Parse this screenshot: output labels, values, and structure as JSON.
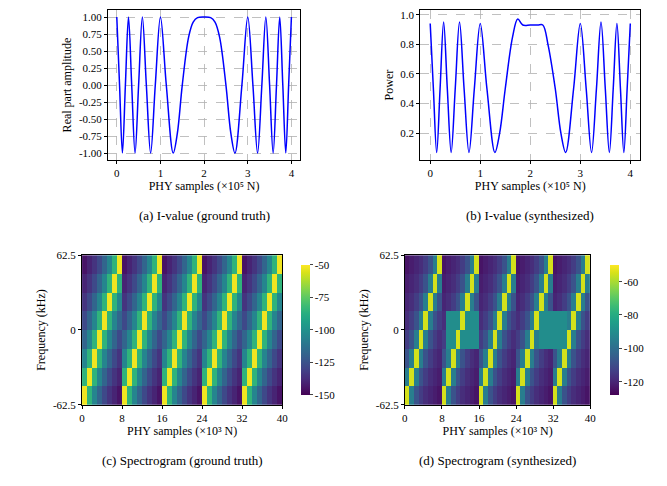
{
  "chart_data": [
    {
      "type": "line",
      "caption": "(a) I-value (ground truth)",
      "x_label": "PHY samples (×10⁵ N)",
      "y_label": "Real part amplitude",
      "color": "#0000ff",
      "line_style": "solid",
      "grid": true,
      "x": [
        0,
        0.0635,
        0.1292,
        0.1972,
        0.2679,
        0.3417,
        0.4189,
        0.5,
        0.5858,
        0.6771,
        0.7753,
        0.882,
        1.0,
        1.134,
        1.2929,
        1.3876,
        1.5,
        1.6464,
        1.75,
        1.85,
        2.0,
        2.15,
        2.25,
        2.3536,
        2.5,
        2.6124,
        2.7071,
        2.866,
        3.0,
        3.118,
        3.2247,
        3.3229,
        3.4142,
        3.5,
        3.5811,
        3.6583,
        3.7321,
        3.8028,
        3.8708,
        3.9365,
        4.0
      ],
      "values": [
        1,
        0,
        -1,
        0,
        1,
        0,
        -1,
        0,
        1,
        0,
        -1,
        0,
        1,
        0,
        -1,
        -0.7071,
        0,
        0.7071,
        0.9239,
        0.99,
        1,
        0.99,
        0.9239,
        0.7071,
        0,
        -0.7071,
        -1,
        0,
        1,
        0,
        -1,
        0,
        1,
        0,
        -1,
        0,
        1,
        0,
        -1,
        0,
        1
      ],
      "xlim": [
        -0.2,
        4.2
      ],
      "xticks": [
        0,
        1,
        2,
        3,
        4
      ],
      "ylim": [
        -1.1,
        1.1
      ],
      "yticks": [
        {
          "value": -1,
          "label": "-1.00"
        },
        {
          "value": -0.75,
          "label": "-0.75"
        },
        {
          "value": -0.5,
          "label": "-0.50"
        },
        {
          "value": -0.25,
          "label": "-0.25"
        },
        {
          "value": 0,
          "label": "0.00"
        },
        {
          "value": 0.25,
          "label": "0.25"
        },
        {
          "value": 0.5,
          "label": "0.50"
        },
        {
          "value": 0.75,
          "label": "0.75"
        },
        {
          "value": 1,
          "label": "1.00"
        }
      ]
    },
    {
      "type": "line",
      "caption": "(b) I-value (synthesized)",
      "x_label": "PHY samples (×10⁵ N)",
      "y_label": "Power",
      "color": "#0000ff",
      "line_style": "solid",
      "grid": true,
      "x": [
        0,
        0.0635,
        0.1292,
        0.1972,
        0.2679,
        0.3417,
        0.4189,
        0.5,
        0.5858,
        0.6771,
        0.7753,
        0.882,
        1.0,
        1.134,
        1.2929,
        1.3876,
        1.5,
        1.6464,
        1.75,
        1.85,
        2.0,
        2.15,
        2.25,
        2.3536,
        2.5,
        2.6124,
        2.7071,
        2.866,
        3.0,
        3.118,
        3.2247,
        3.3229,
        3.4142,
        3.5,
        3.5811,
        3.6583,
        3.7321,
        3.8028,
        3.8708,
        3.9365,
        4.0
      ],
      "values": [
        0.94,
        0.5,
        0.07,
        0.5,
        0.95,
        0.5,
        0.07,
        0.5,
        0.95,
        0.5,
        0.07,
        0.5,
        0.94,
        0.5,
        0.07,
        0.2,
        0.5,
        0.85,
        0.97,
        0.93,
        0.93,
        0.93,
        0.93,
        0.8,
        0.5,
        0.2,
        0.07,
        0.5,
        0.94,
        0.5,
        0.07,
        0.5,
        0.95,
        0.5,
        0.07,
        0.5,
        0.94,
        0.5,
        0.07,
        0.5,
        0.94
      ],
      "xlim": [
        -0.2,
        4.2
      ],
      "xticks": [
        0,
        1,
        2,
        3,
        4
      ],
      "ylim": [
        0.02,
        1.03
      ],
      "yticks": [
        0.2,
        0.4,
        0.6,
        0.8,
        {
          "value": 1,
          "label": "1.0"
        }
      ]
    },
    {
      "type": "heatmap",
      "caption": "(c) Spectrogram (ground truth)",
      "x_label": "PHY samples (×10³ N)",
      "y_label": "Frequency (kHz)",
      "color": "viridis",
      "grid": false,
      "x": [
        0,
        1,
        2,
        3,
        4,
        5,
        6,
        7,
        8,
        9,
        10,
        11,
        12,
        13,
        14,
        15,
        16,
        17,
        18,
        19,
        20,
        21,
        22,
        23,
        24,
        25,
        26,
        27,
        28,
        29,
        30,
        31,
        32,
        33,
        34,
        35,
        36,
        37,
        38,
        39,
        40
      ],
      "y": [
        -62.5,
        -46.875,
        -31.25,
        -15.625,
        0,
        15.625,
        31.25,
        46.875,
        62.5
      ],
      "z": [
        [
          -52,
          -85,
          -105,
          -118,
          -128,
          -135,
          -140,
          -145,
          -52,
          -85,
          -105,
          -118,
          -128,
          -135,
          -140,
          -145,
          -52,
          -85,
          -105,
          -118,
          -128,
          -135,
          -140,
          -145,
          -52,
          -85,
          -105,
          -118,
          -128,
          -135,
          -140,
          -145,
          -52,
          -85,
          -105,
          -118,
          -128,
          -135,
          -140,
          -145
        ],
        [
          -85,
          -52,
          -85,
          -105,
          -118,
          -128,
          -135,
          -140,
          -85,
          -52,
          -85,
          -105,
          -118,
          -128,
          -135,
          -140,
          -85,
          -52,
          -85,
          -105,
          -118,
          -128,
          -135,
          -140,
          -85,
          -52,
          -85,
          -105,
          -118,
          -128,
          -135,
          -140,
          -85,
          -52,
          -85,
          -105,
          -118,
          -128,
          -135,
          -140
        ],
        [
          -105,
          -85,
          -52,
          -85,
          -105,
          -118,
          -128,
          -135,
          -105,
          -85,
          -52,
          -85,
          -105,
          -118,
          -128,
          -135,
          -105,
          -85,
          -52,
          -85,
          -105,
          -118,
          -128,
          -135,
          -105,
          -85,
          -52,
          -85,
          -105,
          -118,
          -128,
          -135,
          -105,
          -85,
          -52,
          -85,
          -105,
          -118,
          -128,
          -135
        ],
        [
          -118,
          -105,
          -85,
          -52,
          -85,
          -105,
          -118,
          -128,
          -118,
          -105,
          -85,
          -52,
          -85,
          -105,
          -118,
          -128,
          -118,
          -105,
          -85,
          -52,
          -85,
          -105,
          -118,
          -128,
          -118,
          -105,
          -85,
          -52,
          -85,
          -105,
          -118,
          -128,
          -118,
          -105,
          -85,
          -52,
          -85,
          -105,
          -118,
          -128
        ],
        [
          -128,
          -118,
          -105,
          -85,
          -52,
          -85,
          -105,
          -118,
          -128,
          -118,
          -105,
          -85,
          -52,
          -85,
          -105,
          -118,
          -128,
          -118,
          -105,
          -85,
          -52,
          -85,
          -105,
          -118,
          -128,
          -118,
          -105,
          -85,
          -52,
          -85,
          -105,
          -118,
          -128,
          -118,
          -105,
          -85,
          -52,
          -85,
          -105,
          -118
        ],
        [
          -135,
          -128,
          -118,
          -105,
          -85,
          -52,
          -85,
          -105,
          -135,
          -128,
          -118,
          -105,
          -85,
          -52,
          -85,
          -105,
          -135,
          -128,
          -118,
          -105,
          -85,
          -52,
          -85,
          -105,
          -135,
          -128,
          -118,
          -105,
          -85,
          -52,
          -85,
          -105,
          -135,
          -128,
          -118,
          -105,
          -85,
          -52,
          -85,
          -105
        ],
        [
          -140,
          -135,
          -128,
          -118,
          -105,
          -85,
          -52,
          -85,
          -140,
          -135,
          -128,
          -118,
          -105,
          -85,
          -52,
          -85,
          -140,
          -135,
          -128,
          -118,
          -105,
          -85,
          -52,
          -85,
          -140,
          -135,
          -128,
          -118,
          -105,
          -85,
          -52,
          -85,
          -140,
          -135,
          -128,
          -118,
          -105,
          -85,
          -52,
          -85
        ],
        [
          -145,
          -140,
          -135,
          -128,
          -118,
          -105,
          -85,
          -52,
          -145,
          -140,
          -135,
          -128,
          -118,
          -105,
          -85,
          -52,
          -145,
          -140,
          -135,
          -128,
          -118,
          -105,
          -85,
          -52,
          -145,
          -140,
          -135,
          -128,
          -118,
          -105,
          -85,
          -52,
          -145,
          -140,
          -135,
          -128,
          -118,
          -105,
          -85,
          -52
        ]
      ],
      "xlim": [
        0,
        40
      ],
      "xticks": [
        0,
        8,
        16,
        24,
        32,
        40
      ],
      "ylim": [
        -62.5,
        62.5
      ],
      "yticks": [
        -62.5,
        0,
        62.5
      ],
      "zlim": [
        -150,
        -50
      ],
      "zticks": [
        -150,
        -125,
        -100,
        -75,
        -50
      ]
    },
    {
      "type": "heatmap",
      "caption": "(d) Spectrogram (synthesized)",
      "x_label": "PHY samples (×10³ N)",
      "y_label": "Frequency (kHz)",
      "color": "viridis",
      "grid": false,
      "x": [
        0,
        1,
        2,
        3,
        4,
        5,
        6,
        7,
        8,
        9,
        10,
        11,
        12,
        13,
        14,
        15,
        16,
        17,
        18,
        19,
        20,
        21,
        22,
        23,
        24,
        25,
        26,
        27,
        28,
        29,
        30,
        31,
        32,
        33,
        34,
        35,
        36,
        37,
        38,
        39,
        40
      ],
      "y": [
        -62.5,
        -46.875,
        -31.25,
        -15.625,
        0,
        15.625,
        31.25,
        46.875,
        62.5
      ],
      "z": [
        [
          -55,
          -95,
          -108,
          -114,
          -118,
          -120,
          -122,
          -124,
          -55,
          -95,
          -108,
          -114,
          -118,
          -120,
          -122,
          -124,
          -55,
          -95,
          -108,
          -114,
          -118,
          -120,
          -122,
          -124,
          -55,
          -95,
          -108,
          -114,
          -118,
          -120,
          -122,
          -124,
          -55,
          -95,
          -108,
          -114,
          -118,
          -120,
          -122,
          -124
        ],
        [
          -95,
          -55,
          -95,
          -108,
          -114,
          -118,
          -120,
          -122,
          -95,
          -55,
          -95,
          -108,
          -114,
          -118,
          -120,
          -122,
          -95,
          -55,
          -95,
          -108,
          -114,
          -118,
          -120,
          -122,
          -95,
          -55,
          -95,
          -108,
          -114,
          -118,
          -120,
          -122,
          -95,
          -55,
          -95,
          -108,
          -114,
          -118,
          -120,
          -122
        ],
        [
          -108,
          -95,
          -55,
          -95,
          -108,
          -114,
          -118,
          -120,
          -108,
          -95,
          -55,
          -95,
          -108,
          -114,
          -118,
          -120,
          -108,
          -95,
          -55,
          -95,
          -108,
          -114,
          -118,
          -120,
          -108,
          -95,
          -55,
          -95,
          -108,
          -114,
          -118,
          -120,
          -108,
          -95,
          -55,
          -95,
          -108,
          -114,
          -118,
          -120
        ],
        [
          -114,
          -108,
          -95,
          -55,
          -95,
          -108,
          -114,
          -118,
          -114,
          -90,
          -90,
          -55,
          -90,
          -90,
          -90,
          -90,
          -114,
          -108,
          -95,
          -55,
          -95,
          -108,
          -114,
          -118,
          -114,
          -108,
          -95,
          -55,
          -95,
          -90,
          -90,
          -90,
          -90,
          -90,
          -90,
          -55,
          -95,
          -108,
          -114,
          -118
        ],
        [
          -118,
          -114,
          -108,
          -95,
          -55,
          -95,
          -108,
          -114,
          -118,
          -90,
          -90,
          -90,
          -55,
          -90,
          -90,
          -90,
          -118,
          -114,
          -108,
          -95,
          -55,
          -95,
          -108,
          -114,
          -118,
          -114,
          -108,
          -95,
          -55,
          -90,
          -90,
          -90,
          -90,
          -90,
          -90,
          -95,
          -55,
          -95,
          -108,
          -114
        ],
        [
          -120,
          -118,
          -114,
          -108,
          -95,
          -55,
          -95,
          -108,
          -120,
          -118,
          -114,
          -108,
          -95,
          -55,
          -95,
          -108,
          -120,
          -118,
          -114,
          -108,
          -95,
          -55,
          -95,
          -108,
          -120,
          -118,
          -114,
          -108,
          -95,
          -55,
          -95,
          -108,
          -120,
          -118,
          -114,
          -108,
          -95,
          -55,
          -95,
          -108
        ],
        [
          -122,
          -120,
          -118,
          -114,
          -108,
          -95,
          -55,
          -95,
          -122,
          -120,
          -118,
          -114,
          -108,
          -95,
          -55,
          -95,
          -122,
          -120,
          -118,
          -114,
          -108,
          -95,
          -55,
          -95,
          -122,
          -120,
          -118,
          -114,
          -108,
          -95,
          -55,
          -95,
          -122,
          -120,
          -118,
          -114,
          -108,
          -95,
          -55,
          -95
        ],
        [
          -124,
          -122,
          -120,
          -118,
          -114,
          -108,
          -95,
          -55,
          -124,
          -122,
          -120,
          -118,
          -114,
          -108,
          -95,
          -55,
          -124,
          -122,
          -120,
          -118,
          -114,
          -108,
          -95,
          -55,
          -124,
          -122,
          -120,
          -118,
          -114,
          -108,
          -95,
          -55,
          -124,
          -122,
          -120,
          -118,
          -114,
          -108,
          -95,
          -55
        ]
      ],
      "xlim": [
        0,
        40
      ],
      "xticks": [
        0,
        8,
        16,
        24,
        32,
        40
      ],
      "ylim": [
        -62.5,
        62.5
      ],
      "yticks": [
        -62.5,
        0,
        62.5
      ],
      "zlim": [
        -128,
        -50
      ],
      "zticks": [
        -120,
        -100,
        -80,
        -60
      ]
    }
  ]
}
